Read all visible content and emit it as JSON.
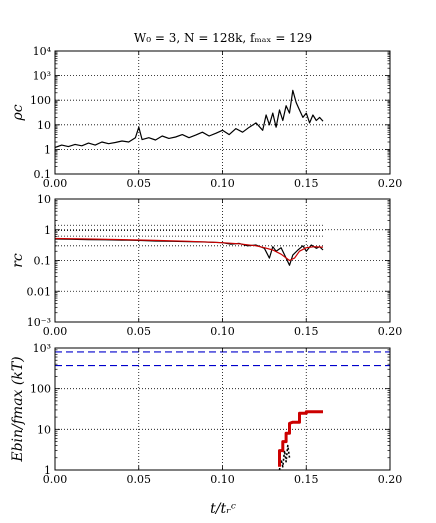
{
  "figure": {
    "title": "W₀ = 3, N = 128k, fₘₐₓ = 129",
    "xlabel": "t/tᵣᶜ"
  },
  "chart_data": [
    {
      "type": "line",
      "ylabel": "ρc",
      "yscale": "log",
      "xlim": [
        0,
        0.2
      ],
      "ylim": [
        0.1,
        10000
      ],
      "x_ticks": [
        "0.00",
        "0.05",
        "0.10",
        "0.15",
        "0.20"
      ],
      "y_ticks": [
        {
          "v": 0.1,
          "label": "0.1"
        },
        {
          "v": 1,
          "label": "1"
        },
        {
          "v": 10,
          "label": "10"
        },
        {
          "v": 100,
          "label": "100"
        },
        {
          "v": 1000,
          "label": "10³"
        },
        {
          "v": 10000,
          "label": "10⁴"
        }
      ],
      "grid": true,
      "guide_lines": [],
      "series": [
        {
          "color": "#000000",
          "style": "solid",
          "x": [
            0.0,
            0.004,
            0.008,
            0.012,
            0.016,
            0.02,
            0.024,
            0.028,
            0.032,
            0.036,
            0.04,
            0.044,
            0.048,
            0.05,
            0.052,
            0.056,
            0.06,
            0.064,
            0.068,
            0.072,
            0.076,
            0.08,
            0.084,
            0.088,
            0.092,
            0.096,
            0.1,
            0.104,
            0.108,
            0.112,
            0.116,
            0.12,
            0.124,
            0.126,
            0.128,
            0.13,
            0.132,
            0.134,
            0.136,
            0.138,
            0.14,
            0.142,
            0.144,
            0.146,
            0.148,
            0.15,
            0.152,
            0.154,
            0.156,
            0.158,
            0.16
          ],
          "values": [
            1.2,
            1.5,
            1.3,
            1.6,
            1.4,
            1.8,
            1.5,
            2.0,
            1.7,
            1.9,
            2.2,
            2.0,
            3.0,
            8.0,
            2.5,
            3.0,
            2.4,
            3.5,
            2.8,
            3.2,
            4.0,
            3.0,
            3.8,
            5.0,
            3.5,
            4.5,
            6.0,
            4.0,
            7.0,
            5.0,
            8.0,
            12.0,
            6.0,
            25.0,
            10.0,
            30.0,
            8.0,
            40.0,
            15.0,
            60.0,
            30.0,
            250.0,
            80.0,
            40.0,
            20.0,
            30.0,
            12.0,
            25.0,
            15.0,
            20.0,
            14.0
          ]
        }
      ]
    },
    {
      "type": "line",
      "ylabel": "rc",
      "yscale": "log",
      "xlim": [
        0,
        0.2
      ],
      "ylim": [
        0.001,
        10
      ],
      "x_ticks": [
        "0.00",
        "0.05",
        "0.10",
        "0.15",
        "0.20"
      ],
      "y_ticks": [
        {
          "v": 0.001,
          "label": "10⁻³"
        },
        {
          "v": 0.01,
          "label": "0.01"
        },
        {
          "v": 0.1,
          "label": "0.1"
        },
        {
          "v": 1,
          "label": "1"
        },
        {
          "v": 10,
          "label": "10"
        }
      ],
      "grid": true,
      "guide_lines": [
        {
          "y": 1.4,
          "x_end": 0.16
        },
        {
          "y": 0.95,
          "x_end": 0.16
        },
        {
          "y": 0.62,
          "x_end": 0.16
        },
        {
          "y": 0.3,
          "x_end": 0.16
        }
      ],
      "series": [
        {
          "color": "#000000",
          "style": "solid",
          "x": [
            0.0,
            0.01,
            0.02,
            0.03,
            0.04,
            0.05,
            0.06,
            0.07,
            0.08,
            0.09,
            0.1,
            0.105,
            0.11,
            0.115,
            0.12,
            0.125,
            0.128,
            0.13,
            0.132,
            0.135,
            0.138,
            0.14,
            0.142,
            0.145,
            0.148,
            0.15,
            0.153,
            0.156,
            0.158,
            0.16
          ],
          "values": [
            0.5,
            0.49,
            0.48,
            0.47,
            0.46,
            0.45,
            0.43,
            0.42,
            0.41,
            0.4,
            0.38,
            0.34,
            0.36,
            0.3,
            0.32,
            0.25,
            0.12,
            0.28,
            0.2,
            0.26,
            0.12,
            0.07,
            0.15,
            0.22,
            0.3,
            0.2,
            0.32,
            0.25,
            0.28,
            0.22
          ]
        },
        {
          "color": "#cc0000",
          "style": "solid",
          "x": [
            0.0,
            0.02,
            0.04,
            0.06,
            0.08,
            0.1,
            0.11,
            0.12,
            0.125,
            0.13,
            0.135,
            0.14,
            0.143,
            0.146,
            0.15,
            0.155,
            0.16
          ],
          "values": [
            0.52,
            0.5,
            0.48,
            0.45,
            0.42,
            0.38,
            0.35,
            0.3,
            0.26,
            0.22,
            0.16,
            0.1,
            0.12,
            0.2,
            0.26,
            0.28,
            0.27
          ]
        }
      ]
    },
    {
      "type": "line",
      "ylabel": "Ebin/fmax (kT)",
      "yscale": "log",
      "xlim": [
        0,
        0.2
      ],
      "ylim": [
        1,
        1000
      ],
      "x_ticks": [
        "0.00",
        "0.05",
        "0.10",
        "0.15",
        "0.20"
      ],
      "y_ticks": [
        {
          "v": 1,
          "label": "1"
        },
        {
          "v": 10,
          "label": "10"
        },
        {
          "v": 100,
          "label": "100"
        },
        {
          "v": 1000,
          "label": "10³"
        }
      ],
      "grid": true,
      "guide_lines": [],
      "series": [
        {
          "color": "#0000cc",
          "style": "dashed",
          "x": [
            0.0,
            0.2
          ],
          "values": [
            800,
            800
          ]
        },
        {
          "color": "#0000cc",
          "style": "dashed",
          "x": [
            0.0,
            0.2
          ],
          "values": [
            370,
            370
          ]
        },
        {
          "color": "#000000",
          "style": "dotted",
          "x": [
            0.134,
            0.135,
            0.136,
            0.137,
            0.138,
            0.139,
            0.14
          ],
          "values": [
            1.0,
            1.8,
            1.2,
            3.0,
            1.6,
            4.0,
            2.0
          ]
        },
        {
          "color": "#cc0000",
          "style": "thick",
          "x": [
            0.134,
            0.134,
            0.136,
            0.136,
            0.138,
            0.138,
            0.14,
            0.14,
            0.142,
            0.144,
            0.146,
            0.146,
            0.15,
            0.15,
            0.155,
            0.16
          ],
          "values": [
            1.2,
            3.0,
            3.0,
            5.0,
            5.0,
            8.0,
            8.0,
            14.0,
            15.0,
            15.0,
            15.0,
            25.0,
            25.0,
            27.0,
            27.0,
            27.0
          ]
        }
      ]
    }
  ]
}
